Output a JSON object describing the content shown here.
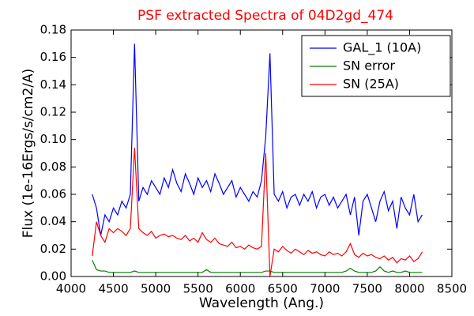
{
  "chart_data": {
    "type": "line",
    "title": "PSF extracted Spectra of 04D2gd_474",
    "x_label": "Wavelength (Ang.)",
    "y_label": "Flux (1e-16Ergs/s/cm2/A)",
    "x": [
      4250,
      4300,
      4350,
      4400,
      4450,
      4500,
      4550,
      4600,
      4650,
      4700,
      4750,
      4800,
      4850,
      4900,
      4950,
      5000,
      5050,
      5100,
      5150,
      5200,
      5250,
      5300,
      5350,
      5400,
      5450,
      5500,
      5550,
      5600,
      5650,
      5700,
      5750,
      5800,
      5850,
      5900,
      5950,
      6000,
      6050,
      6100,
      6150,
      6200,
      6250,
      6300,
      6350,
      6400,
      6450,
      6500,
      6550,
      6600,
      6650,
      6700,
      6750,
      6800,
      6850,
      6900,
      6950,
      7000,
      7050,
      7100,
      7150,
      7200,
      7250,
      7300,
      7350,
      7400,
      7450,
      7500,
      7550,
      7600,
      7650,
      7700,
      7750,
      7800,
      7850,
      7900,
      7950,
      8000,
      8050,
      8100,
      8150
    ],
    "series": [
      {
        "name": "GAL_1 (10A)",
        "color": "#0000ff",
        "values": [
          0.06,
          0.05,
          0.03,
          0.045,
          0.04,
          0.05,
          0.045,
          0.055,
          0.05,
          0.06,
          0.17,
          0.055,
          0.065,
          0.06,
          0.07,
          0.065,
          0.06,
          0.072,
          0.065,
          0.078,
          0.068,
          0.062,
          0.075,
          0.068,
          0.06,
          0.072,
          0.065,
          0.07,
          0.062,
          0.075,
          0.068,
          0.06,
          0.065,
          0.07,
          0.058,
          0.065,
          0.06,
          0.055,
          0.062,
          0.058,
          0.07,
          0.102,
          0.163,
          0.06,
          0.055,
          0.062,
          0.05,
          0.058,
          0.06,
          0.052,
          0.06,
          0.055,
          0.062,
          0.05,
          0.058,
          0.06,
          0.052,
          0.058,
          0.05,
          0.055,
          0.06,
          0.045,
          0.058,
          0.03,
          0.055,
          0.06,
          0.05,
          0.04,
          0.055,
          0.062,
          0.048,
          0.055,
          0.035,
          0.058,
          0.05,
          0.045,
          0.06,
          0.04,
          0.045
        ]
      },
      {
        "name": "SN error",
        "color": "#008000",
        "values": [
          0.012,
          0.005,
          0.004,
          0.004,
          0.003,
          0.003,
          0.003,
          0.003,
          0.003,
          0.003,
          0.004,
          0.003,
          0.003,
          0.003,
          0.003,
          0.003,
          0.003,
          0.003,
          0.003,
          0.003,
          0.003,
          0.003,
          0.003,
          0.003,
          0.003,
          0.003,
          0.003,
          0.005,
          0.003,
          0.003,
          0.003,
          0.003,
          0.003,
          0.003,
          0.003,
          0.003,
          0.003,
          0.003,
          0.003,
          0.003,
          0.003,
          0.004,
          0.004,
          0.003,
          0.003,
          0.003,
          0.003,
          0.003,
          0.003,
          0.003,
          0.003,
          0.003,
          0.003,
          0.003,
          0.003,
          0.003,
          0.003,
          0.003,
          0.003,
          0.003,
          0.004,
          0.006,
          0.004,
          0.003,
          0.003,
          0.003,
          0.003,
          0.004,
          0.007,
          0.004,
          0.003,
          0.004,
          0.003,
          0.003,
          0.004,
          0.003,
          0.003,
          0.003,
          0.003
        ]
      },
      {
        "name": "SN (25A)",
        "color": "#ff0000",
        "values": [
          0.015,
          0.04,
          0.03,
          0.025,
          0.035,
          0.032,
          0.035,
          0.033,
          0.03,
          0.035,
          0.094,
          0.035,
          0.032,
          0.03,
          0.033,
          0.028,
          0.03,
          0.031,
          0.029,
          0.03,
          0.028,
          0.027,
          0.03,
          0.026,
          0.028,
          0.025,
          0.032,
          0.027,
          0.025,
          0.028,
          0.024,
          0.023,
          0.022,
          0.025,
          0.021,
          0.022,
          0.02,
          0.023,
          0.021,
          0.02,
          0.022,
          0.09,
          0.0,
          0.02,
          0.018,
          0.022,
          0.019,
          0.017,
          0.02,
          0.018,
          0.016,
          0.019,
          0.017,
          0.018,
          0.016,
          0.015,
          0.018,
          0.016,
          0.017,
          0.015,
          0.018,
          0.024,
          0.016,
          0.014,
          0.017,
          0.015,
          0.016,
          0.014,
          0.013,
          0.015,
          0.012,
          0.014,
          0.01,
          0.013,
          0.012,
          0.015,
          0.011,
          0.013,
          0.018
        ]
      }
    ],
    "xlim": [
      4000,
      8500
    ],
    "xticks": [
      4000,
      4500,
      5000,
      5500,
      6000,
      6500,
      7000,
      7500,
      8000,
      8500
    ],
    "ylim": [
      0,
      0.18
    ],
    "yticks": [
      {
        "value": 0,
        "label": "0.00"
      },
      {
        "value": 0.02,
        "label": "0.02"
      },
      {
        "value": 0.04,
        "label": "0.04"
      },
      {
        "value": 0.06,
        "label": "0.06"
      },
      {
        "value": 0.08,
        "label": "0.08"
      },
      {
        "value": 0.1,
        "label": "0.10"
      },
      {
        "value": 0.12,
        "label": "0.12"
      },
      {
        "value": 0.14,
        "label": "0.14"
      },
      {
        "value": 0.16,
        "label": "0.16"
      },
      {
        "value": 0.18,
        "label": "0.18"
      }
    ],
    "legend": "upper right",
    "title_color": "#ff0000"
  }
}
